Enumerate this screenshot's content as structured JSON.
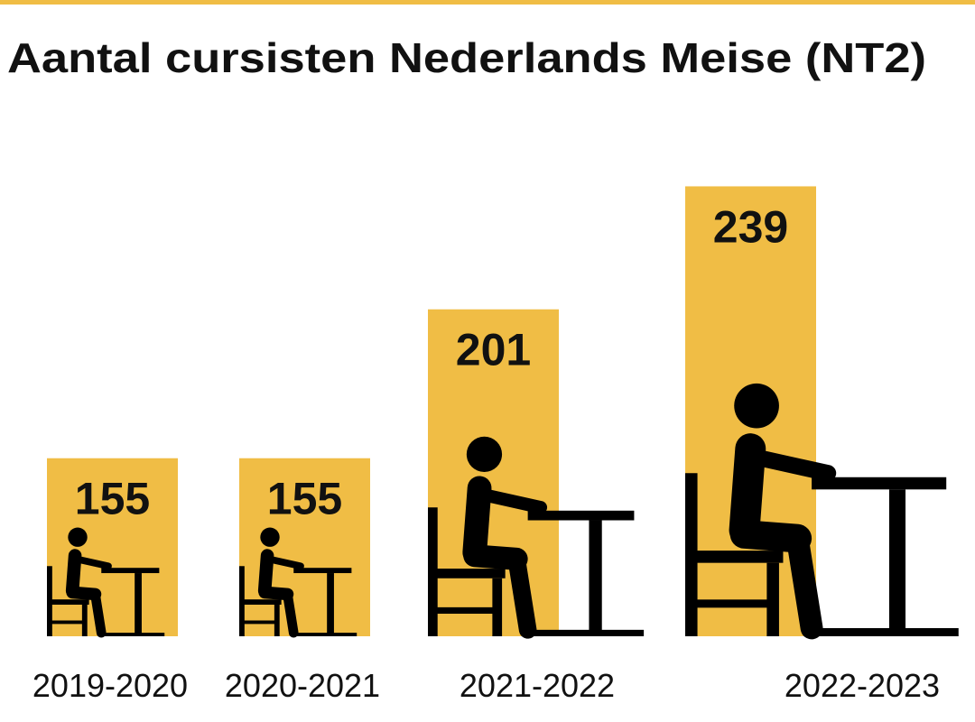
{
  "chart_data": {
    "type": "bar",
    "title": "Aantal cursisten Nederlands Meise (NT2)",
    "categories": [
      "2019-2020",
      "2020-2021",
      "2021-2022",
      "2022-2023"
    ],
    "values": [
      155,
      155,
      201,
      239
    ],
    "color": "#f0bd45",
    "ylim": [
      100,
      250
    ]
  }
}
